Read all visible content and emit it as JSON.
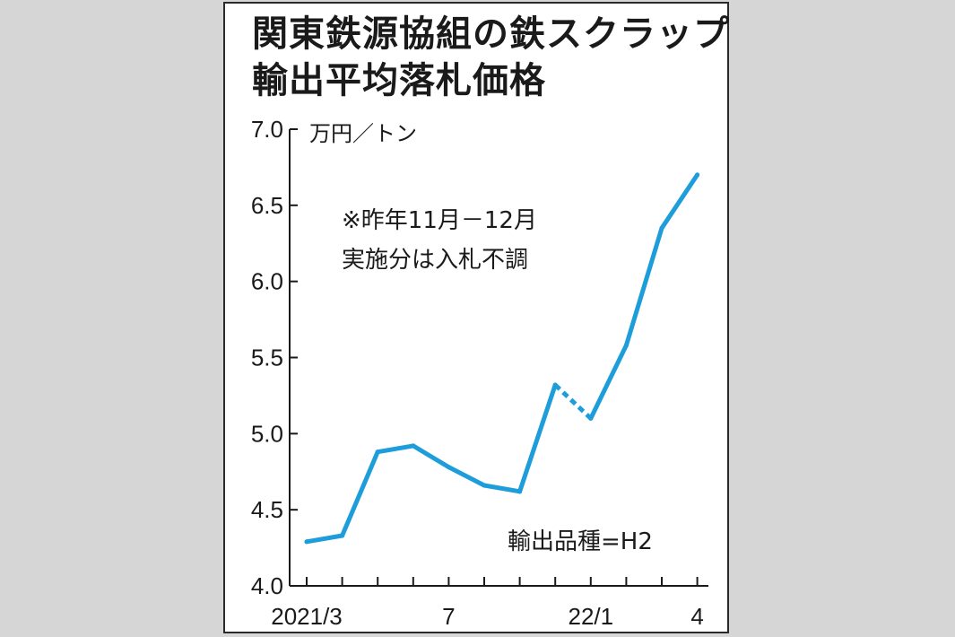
{
  "chart_data": {
    "type": "line",
    "title": [
      "関東鉄源協組の鉄スクラップ",
      "輸出平均落札価格"
    ],
    "unit": "万円／トン",
    "ylim": [
      4.0,
      7.0
    ],
    "yticks": [
      "7.0",
      "6.5",
      "6.0",
      "5.5",
      "5.0",
      "4.5",
      "4.0"
    ],
    "x_categories": [
      "2021/3",
      "2021/4",
      "2021/5",
      "2021/6",
      "2021/7",
      "2021/8",
      "2021/9",
      "2021/10",
      "2022/1",
      "2022/2",
      "2022/3",
      "2022/4"
    ],
    "x_tick_labels": [
      {
        "index": 0,
        "label": "2021/3"
      },
      {
        "index": 4,
        "label": "7"
      },
      {
        "index": 8,
        "label": "22/1"
      },
      {
        "index": 11,
        "label": "4"
      }
    ],
    "series": [
      {
        "values": [
          4.29,
          4.33,
          4.88,
          4.92,
          4.78,
          4.66,
          4.62,
          5.32,
          5.1,
          5.58,
          6.35,
          6.7
        ],
        "color": "#1d9dd9",
        "dashed_segments": [
          [
            7,
            8
          ]
        ]
      }
    ],
    "annotations": [
      "※昨年11月－12月",
      "実施分は入札不調"
    ],
    "footnote": "輸出品種=H2",
    "grid": false
  }
}
